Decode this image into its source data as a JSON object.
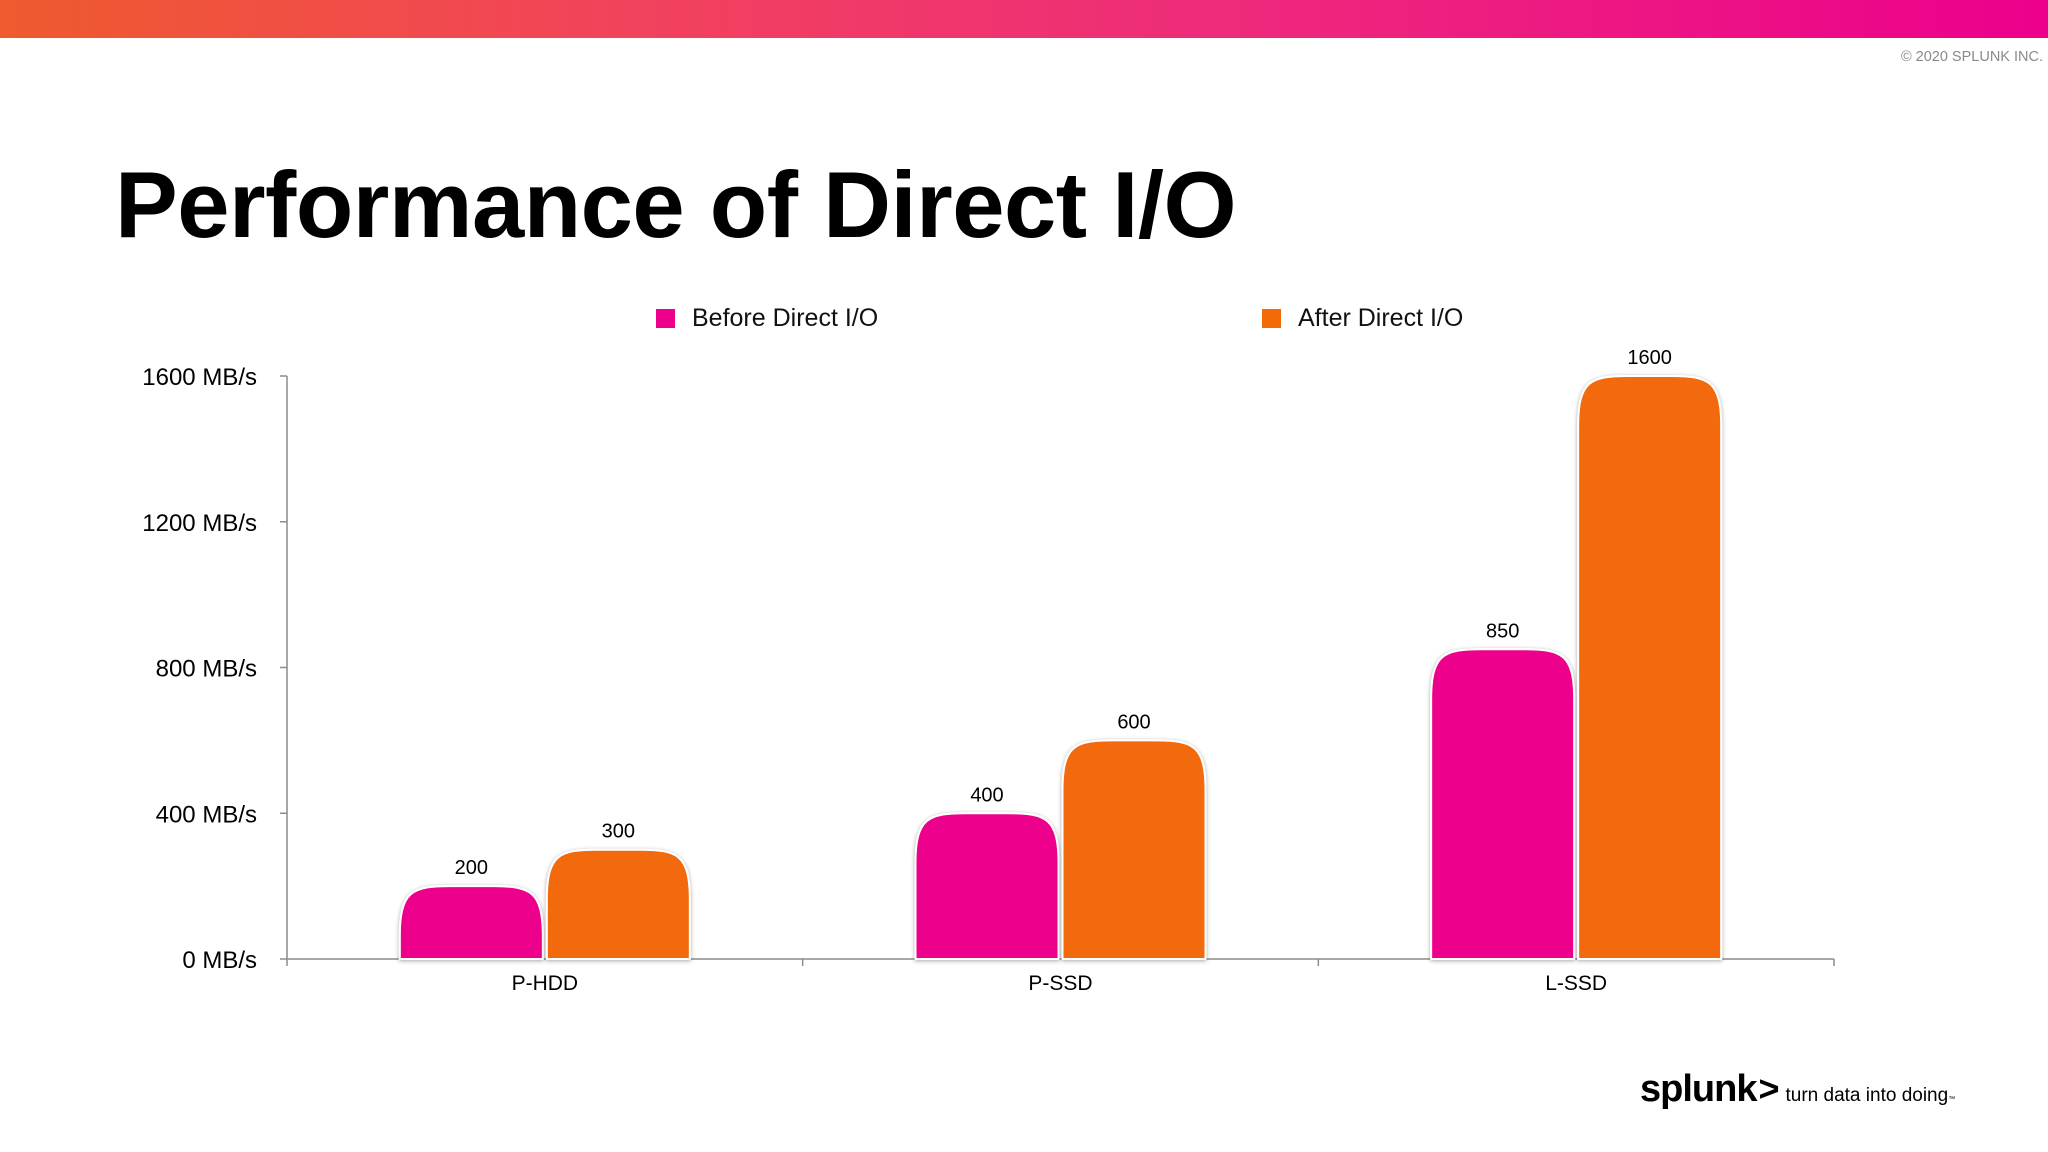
{
  "header": {
    "copyright": "© 2020 SPLUNK INC."
  },
  "slide": {
    "title": "Performance of Direct I/O"
  },
  "colors": {
    "before": "#ec008c",
    "after": "#f26b07",
    "axis": "#8c8c8c"
  },
  "chart_data": {
    "type": "bar",
    "categories": [
      "P-HDD",
      "P-SSD",
      "L-SSD"
    ],
    "series": [
      {
        "name": "Before Direct I/O",
        "values": [
          200,
          400,
          850
        ]
      },
      {
        "name": "After Direct I/O",
        "values": [
          300,
          600,
          1600
        ]
      }
    ],
    "ylim": [
      0,
      1600
    ],
    "yticks": [
      0,
      400,
      800,
      1200,
      1600
    ],
    "ytick_labels": [
      "0 MB/s",
      "400 MB/s",
      "800 MB/s",
      "1200 MB/s",
      "1600 MB/s"
    ],
    "data_labels": [
      [
        "200",
        "400",
        "850"
      ],
      [
        "300",
        "600",
        "1600"
      ]
    ],
    "legend_position": "top",
    "grid": false,
    "xlabel": "",
    "ylabel": ""
  },
  "footer": {
    "logo_text": "splunk",
    "logo_chevron": ">",
    "tagline": "turn data into doing",
    "trademark": "™"
  }
}
